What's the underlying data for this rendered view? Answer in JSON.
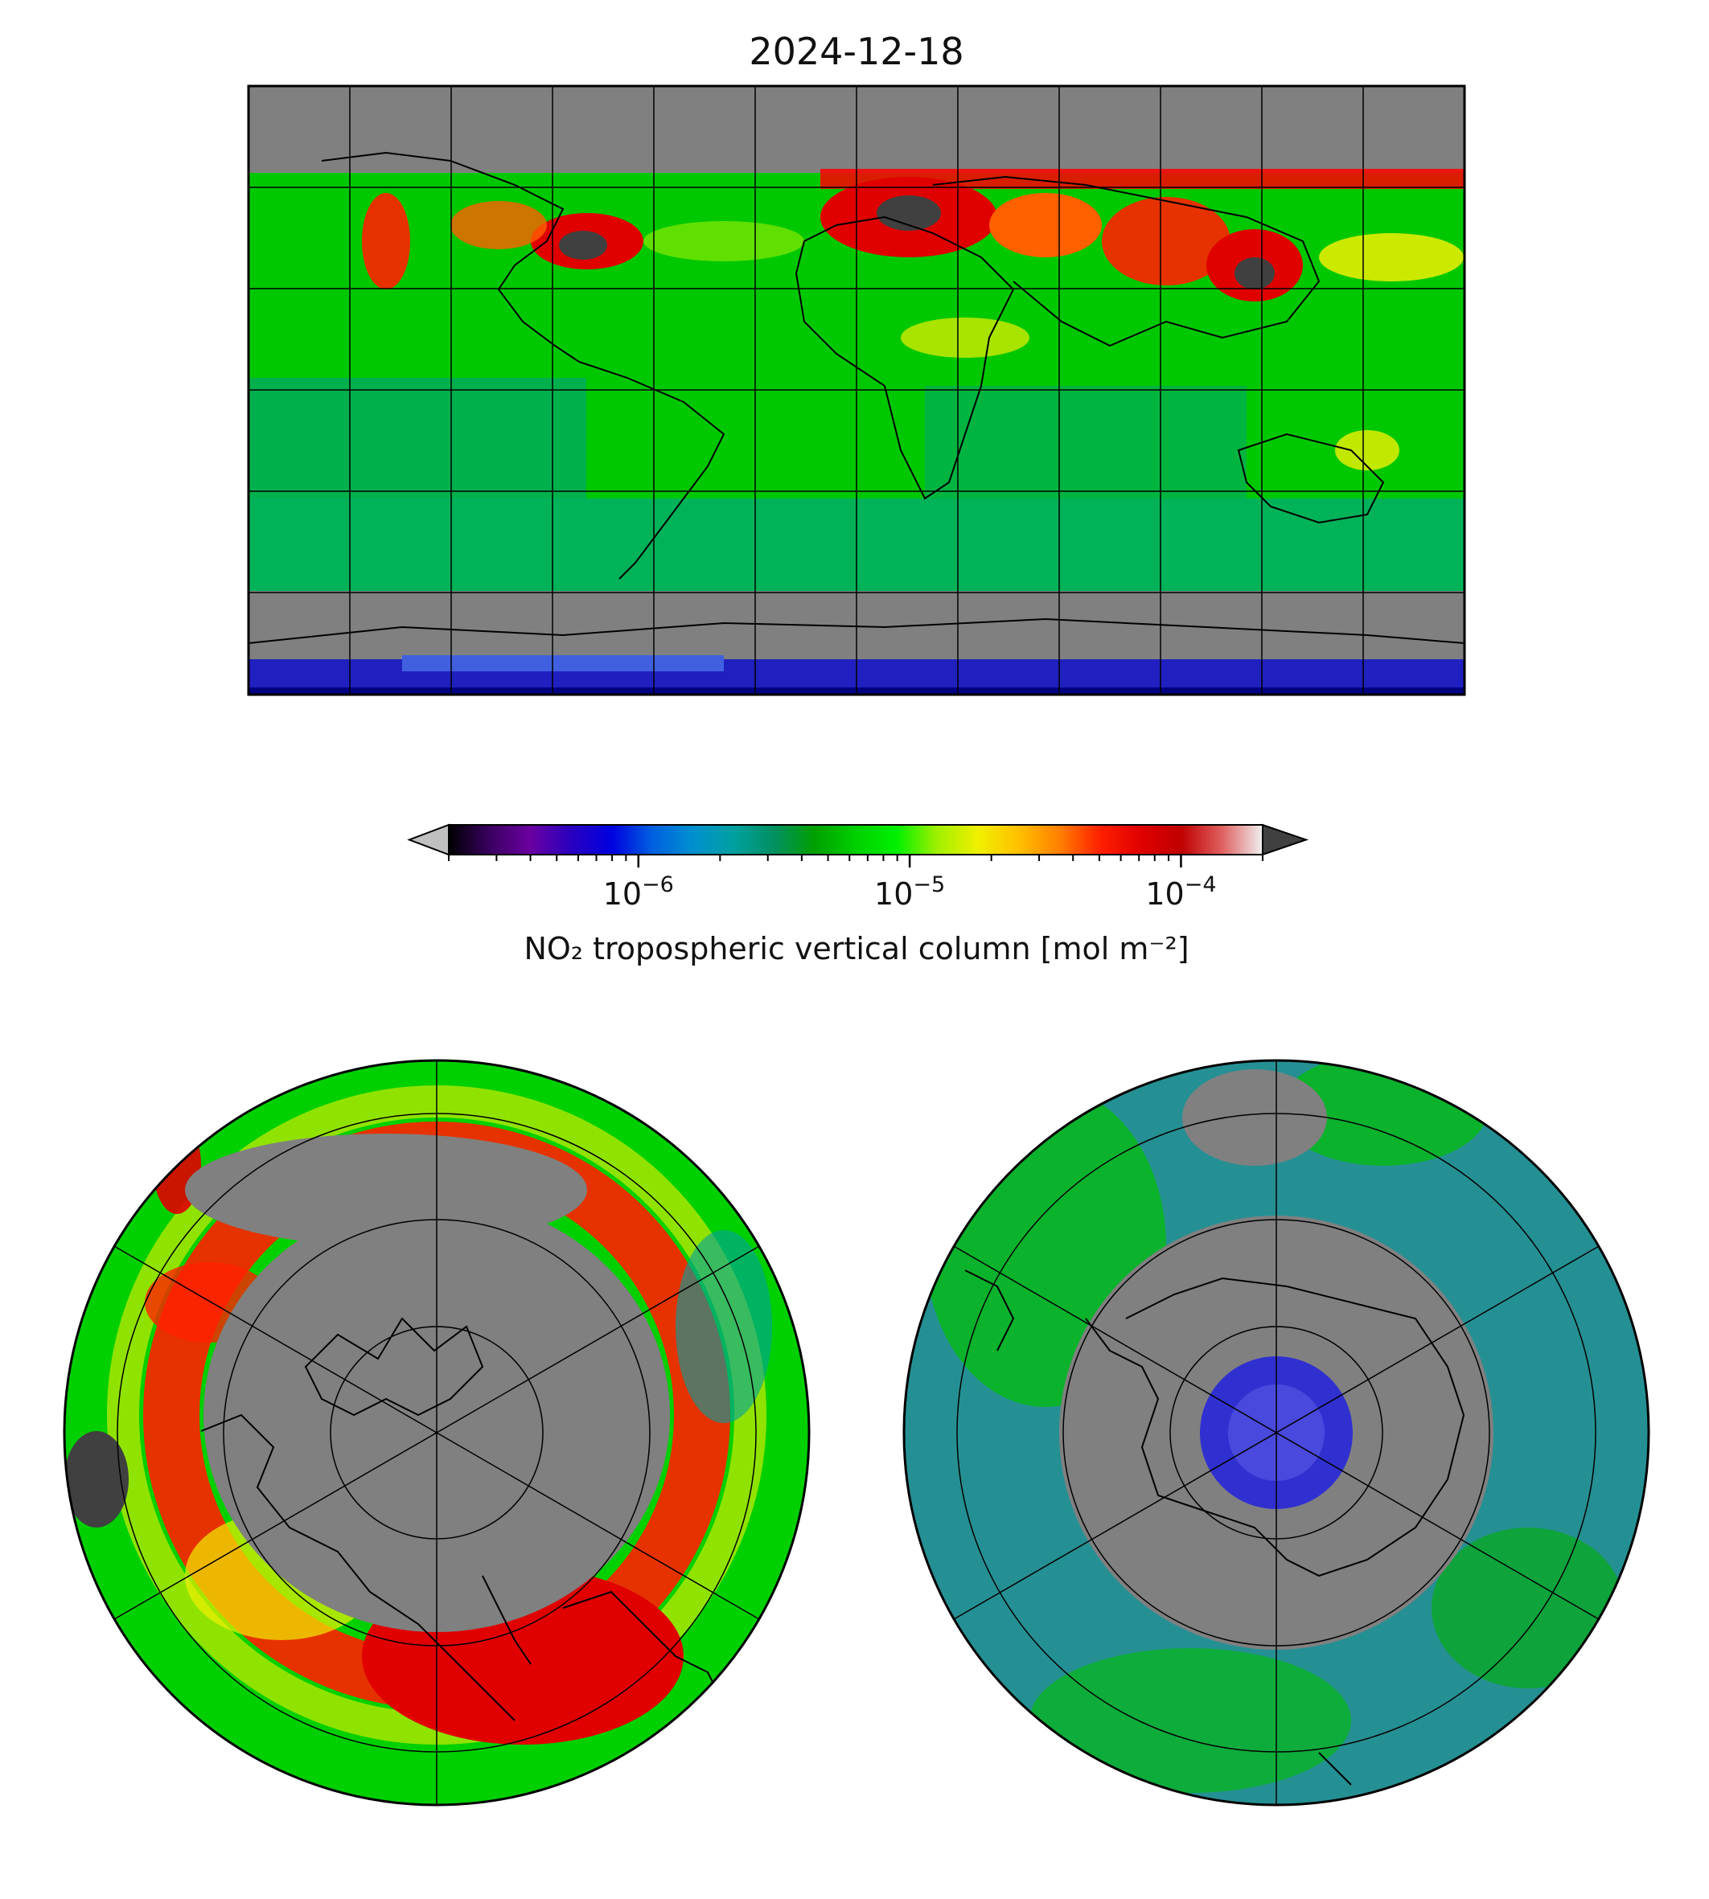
{
  "figure": {
    "title": "2024-12-18"
  },
  "colorbar": {
    "label": "NO₂ tropospheric vertical column [mol m⁻²]",
    "scale": "log",
    "range": [
      2e-07,
      0.0002
    ],
    "extend": "both",
    "ticks": [
      {
        "value": 1e-06,
        "base": "10",
        "exp": "−6"
      },
      {
        "value": 1e-05,
        "base": "10",
        "exp": "−5"
      },
      {
        "value": 0.0001,
        "base": "10",
        "exp": "−4"
      }
    ],
    "colors": [
      "#000000",
      "#3a0060",
      "#6a00a0",
      "#2a00c0",
      "#0000e0",
      "#0060e0",
      "#0090d0",
      "#00a0a0",
      "#009060",
      "#00a000",
      "#00d000",
      "#00f000",
      "#a0f000",
      "#f0f000",
      "#ffc000",
      "#ff8000",
      "#ff2000",
      "#e00000",
      "#c00000",
      "#e06060",
      "#f0f0f0"
    ],
    "under_color": "#c0c0c0",
    "over_color": "#404040"
  },
  "colors": {
    "no_data": "#808080",
    "coastline": "#000000",
    "gridline": "#000000"
  },
  "panels": [
    {
      "name": "global-map",
      "projection": "plate-carree",
      "lon_range": [
        -180,
        180
      ],
      "lat_range": [
        -90,
        90
      ],
      "gridline_lons": [
        -150,
        -120,
        -90,
        -60,
        -30,
        0,
        30,
        60,
        90,
        120,
        150
      ],
      "gridline_lats": [
        -60,
        -30,
        0,
        30,
        60
      ]
    },
    {
      "name": "north-polar-map",
      "projection": "north-polar-stereographic",
      "gridline_lats": [
        80,
        70,
        60,
        50
      ],
      "gridline_lons": [
        0,
        60,
        120,
        180,
        240,
        300
      ]
    },
    {
      "name": "south-polar-map",
      "projection": "south-polar-stereographic",
      "gridline_lats": [
        -80,
        -70,
        -60,
        -50
      ],
      "gridline_lons": [
        0,
        60,
        120,
        180,
        240,
        300
      ]
    }
  ]
}
